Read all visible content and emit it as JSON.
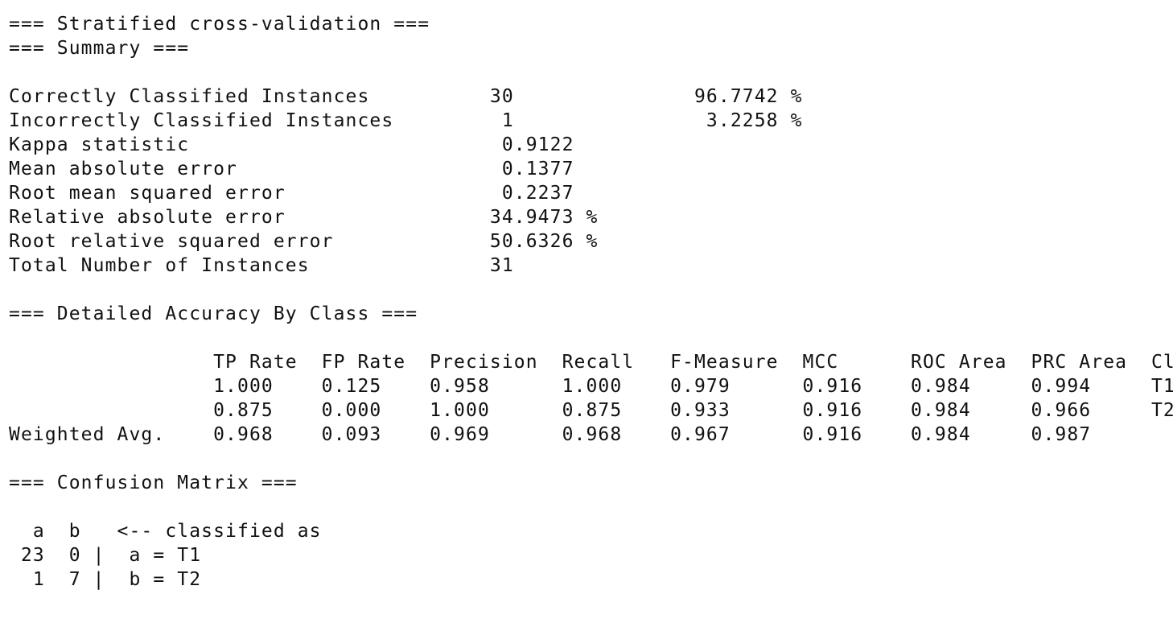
{
  "output": {
    "lines": [
      "=== Stratified cross-validation ===",
      "=== Summary ===",
      "",
      "Correctly Classified Instances          30               96.7742 %",
      "Incorrectly Classified Instances         1                3.2258 %",
      "Kappa statistic                          0.9122",
      "Mean absolute error                      0.1377",
      "Root mean squared error                  0.2237",
      "Relative absolute error                 34.9473 %",
      "Root relative squared error             50.6326 %",
      "Total Number of Instances               31     ",
      "",
      "=== Detailed Accuracy By Class ===",
      "",
      "                 TP Rate  FP Rate  Precision  Recall   F-Measure  MCC      ROC Area  PRC Area  Class",
      "                 1.000    0.125    0.958      1.000    0.979      0.916    0.984     0.994     T1",
      "                 0.875    0.000    1.000      0.875    0.933      0.916    0.984     0.966     T2",
      "Weighted Avg.    0.968    0.093    0.969      0.968    0.967      0.916    0.984     0.987     ",
      "",
      "=== Confusion Matrix ===",
      "",
      "  a  b   <-- classified as",
      " 23  0 |  a = T1",
      "  1  7 |  b = T2"
    ]
  }
}
